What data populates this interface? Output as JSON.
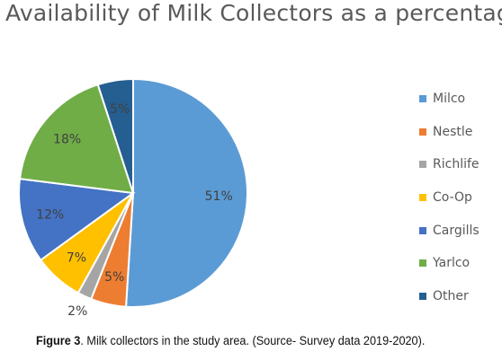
{
  "chart_data": {
    "type": "pie",
    "title": "Availability of Milk Collectors as a percentage",
    "series": [
      {
        "name": "Milco",
        "value": 51,
        "label": "51%",
        "color": "#5B9BD5"
      },
      {
        "name": "Nestle",
        "value": 5,
        "label": "5%",
        "color": "#ED7D31"
      },
      {
        "name": "Richlife",
        "value": 2,
        "label": "2%",
        "color": "#A5A5A5"
      },
      {
        "name": "Co-Op",
        "value": 7,
        "label": "7%",
        "color": "#FFC000"
      },
      {
        "name": "Cargills",
        "value": 12,
        "label": "12%",
        "color": "#4472C4"
      },
      {
        "name": "Yarlco",
        "value": 18,
        "label": "18%",
        "color": "#70AD47"
      },
      {
        "name": "Other",
        "value": 5,
        "label": "5%",
        "color": "#255E91"
      }
    ],
    "legend_position": "right"
  },
  "caption": {
    "figure_label": "Figure 3",
    "text": ". Milk collectors in the study area. (Source- Survey data 2019-2020)."
  }
}
